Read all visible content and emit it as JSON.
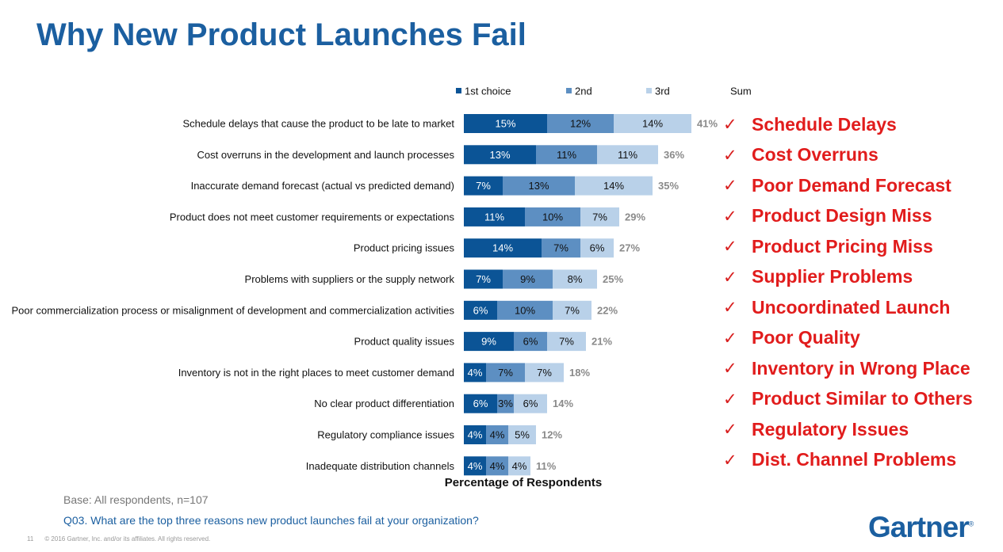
{
  "page": {
    "title": "Why New Product Launches Fail",
    "base_note": "Base: All respondents, n=107",
    "question": "Q03. What are the top three reasons new product launches fail at your organization?",
    "footer_page": "11",
    "footer_copyright": "© 2016 Gartner, Inc. and/or its affiliates. All rights reserved.",
    "logo_text": "Gartner",
    "logo_mark": "®"
  },
  "callouts": [
    "Schedule Delays",
    "Cost Overruns",
    "Poor Demand Forecast",
    "Product Design Miss",
    "Product Pricing Miss",
    "Supplier Problems",
    "Uncoordinated Launch",
    "Poor Quality",
    "Inventory in Wrong Place",
    "Product Similar to Others",
    "Regulatory Issues",
    "Dist. Channel Problems"
  ],
  "check_glyph": "✓",
  "chart_data": {
    "type": "bar",
    "orientation": "horizontal",
    "stacked": true,
    "title": "",
    "xlabel": "Percentage of Respondents",
    "ylabel": "",
    "xlim": [
      0,
      41
    ],
    "grid": false,
    "legend_position": "top",
    "unit": "%",
    "categories": [
      "Schedule delays that cause the product to be late to market",
      "Cost overruns in the development and launch processes",
      "Inaccurate demand forecast (actual vs predicted demand)",
      "Product does not meet customer requirements or expectations",
      "Product pricing issues",
      "Problems with suppliers or the supply network",
      "Poor commercialization process or misalignment of development and commercialization activities",
      "Product quality issues",
      "Inventory is not in the right places to meet customer demand",
      "No clear product differentiation",
      "Regulatory compliance issues",
      "Inadequate distribution channels"
    ],
    "series": [
      {
        "name": "1st choice",
        "color": "#0b5496",
        "text_color": "#ffffff",
        "values": [
          15,
          13,
          7,
          11,
          14,
          7,
          6,
          9,
          4,
          6,
          4,
          4
        ]
      },
      {
        "name": "2nd",
        "color": "#5d8fc2",
        "text_color": "#111111",
        "values": [
          12,
          11,
          13,
          10,
          7,
          9,
          10,
          6,
          7,
          3,
          4,
          4
        ]
      },
      {
        "name": "3rd",
        "color": "#b9d1e9",
        "text_color": "#111111",
        "values": [
          14,
          11,
          14,
          7,
          6,
          8,
          7,
          7,
          7,
          6,
          5,
          4
        ]
      }
    ],
    "sum_label": "Sum",
    "sums": [
      41,
      36,
      35,
      29,
      27,
      25,
      22,
      21,
      18,
      14,
      12,
      11
    ]
  }
}
